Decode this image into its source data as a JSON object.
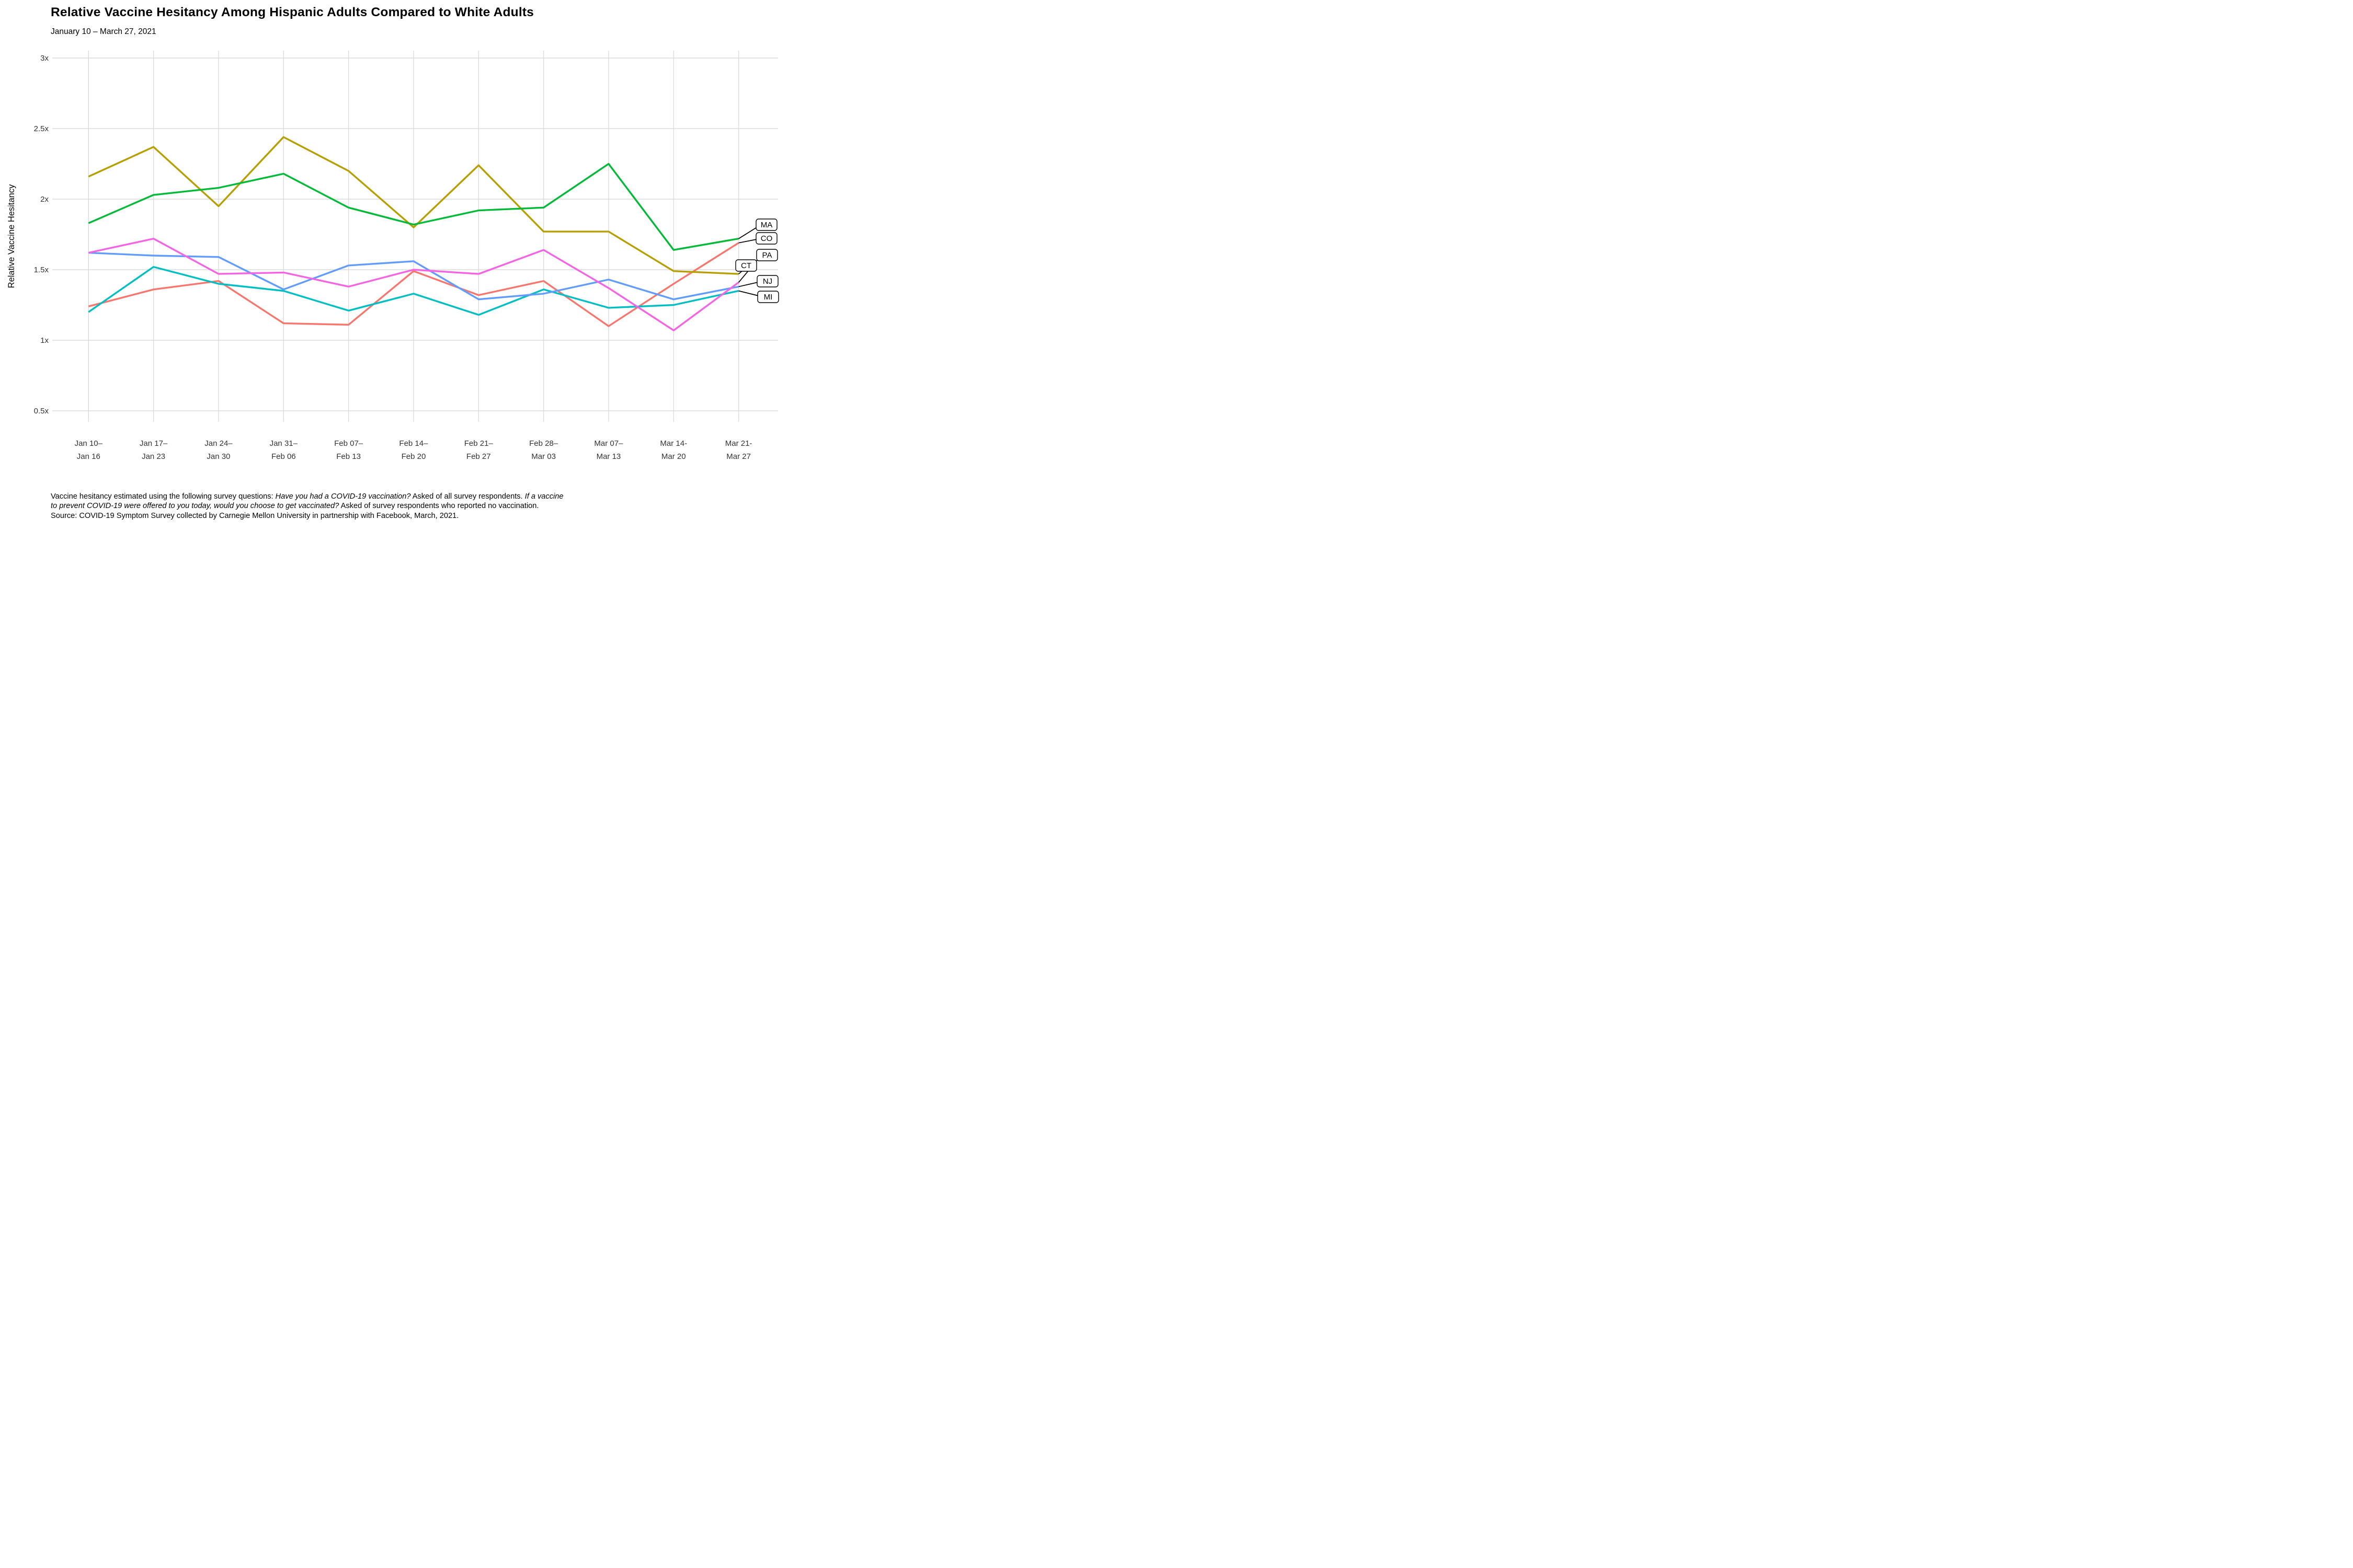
{
  "title": "Relative Vaccine Hesitancy Among Hispanic Adults Compared to White Adults",
  "subtitle": "January 10 – March 27, 2021",
  "chart_data": {
    "type": "line",
    "title": "Relative Vaccine Hesitancy Among Hispanic Adults Compared to White Adults",
    "subtitle": "January 10 – March 27, 2021",
    "xlabel": "",
    "ylabel": "Relative Vaccine Hesitancy",
    "ylim": [
      0.35,
      3.15
    ],
    "grid": true,
    "legend_position": "right-end-labels",
    "yticks": [
      {
        "value": 0.5,
        "label": "0.5x"
      },
      {
        "value": 1.0,
        "label": "1x"
      },
      {
        "value": 1.5,
        "label": "1.5x"
      },
      {
        "value": 2.0,
        "label": "2x"
      },
      {
        "value": 2.5,
        "label": "2.5x"
      },
      {
        "value": 3.0,
        "label": "3x"
      }
    ],
    "categories": [
      "Jan 10–\nJan 16",
      "Jan 17–\nJan 23",
      "Jan 24–\nJan 30",
      "Jan 31–\nFeb 06",
      "Feb 07–\nFeb 13",
      "Feb 14–\nFeb 20",
      "Feb 21–\nFeb 27",
      "Feb 28–\nMar 03",
      "Mar 07–\nMar 13",
      "Mar 14-\nMar 20",
      "Mar 21-\nMar 27"
    ],
    "series": [
      {
        "name": "CO",
        "color": "#F8766D",
        "values": [
          1.24,
          1.36,
          1.42,
          1.12,
          1.11,
          1.49,
          1.32,
          1.42,
          1.1,
          1.4,
          1.69
        ]
      },
      {
        "name": "CT",
        "color": "#B79F00",
        "values": [
          2.16,
          2.37,
          1.95,
          2.44,
          2.2,
          1.8,
          2.24,
          1.77,
          1.77,
          1.49,
          1.47
        ]
      },
      {
        "name": "MA",
        "color": "#00BA38",
        "values": [
          1.83,
          2.03,
          2.08,
          2.18,
          1.94,
          1.82,
          1.92,
          1.94,
          2.25,
          1.64,
          1.72
        ]
      },
      {
        "name": "MI",
        "color": "#00BFC4",
        "values": [
          1.2,
          1.52,
          1.4,
          1.35,
          1.21,
          1.33,
          1.18,
          1.36,
          1.23,
          1.25,
          1.35
        ]
      },
      {
        "name": "NJ",
        "color": "#619CFF",
        "values": [
          1.62,
          1.6,
          1.59,
          1.36,
          1.53,
          1.56,
          1.29,
          1.33,
          1.43,
          1.29,
          1.38
        ]
      },
      {
        "name": "PA",
        "color": "#F564E3",
        "values": [
          1.62,
          1.72,
          1.47,
          1.48,
          1.38,
          1.5,
          1.47,
          1.64,
          1.37,
          1.07,
          1.41
        ]
      }
    ],
    "colors": {
      "grid": "#DBDBDB",
      "axis_text": "#333333",
      "label_box_border": "#000000",
      "label_box_fill": "#ffffff",
      "leader_line": "#000000"
    }
  },
  "caption": {
    "lines": [
      [
        {
          "t": "Vaccine hesitancy estimated using the following survey questions: ",
          "i": false
        },
        {
          "t": "Have you had a COVID-19 vaccination?",
          "i": true
        },
        {
          "t": " Asked of all survey respondents. ",
          "i": false
        },
        {
          "t": "If a vaccine",
          "i": true
        }
      ],
      [
        {
          "t": "to prevent COVID-19 were offered to you today, would you choose to get vaccinated?",
          "i": true
        },
        {
          "t": " Asked of survey respondents who reported no vaccination.",
          "i": false
        }
      ],
      [
        {
          "t": "Source: COVID-19 Symptom Survey collected by Carnegie Mellon University in partnership with Facebook, March, 2021.",
          "i": false
        }
      ]
    ]
  }
}
